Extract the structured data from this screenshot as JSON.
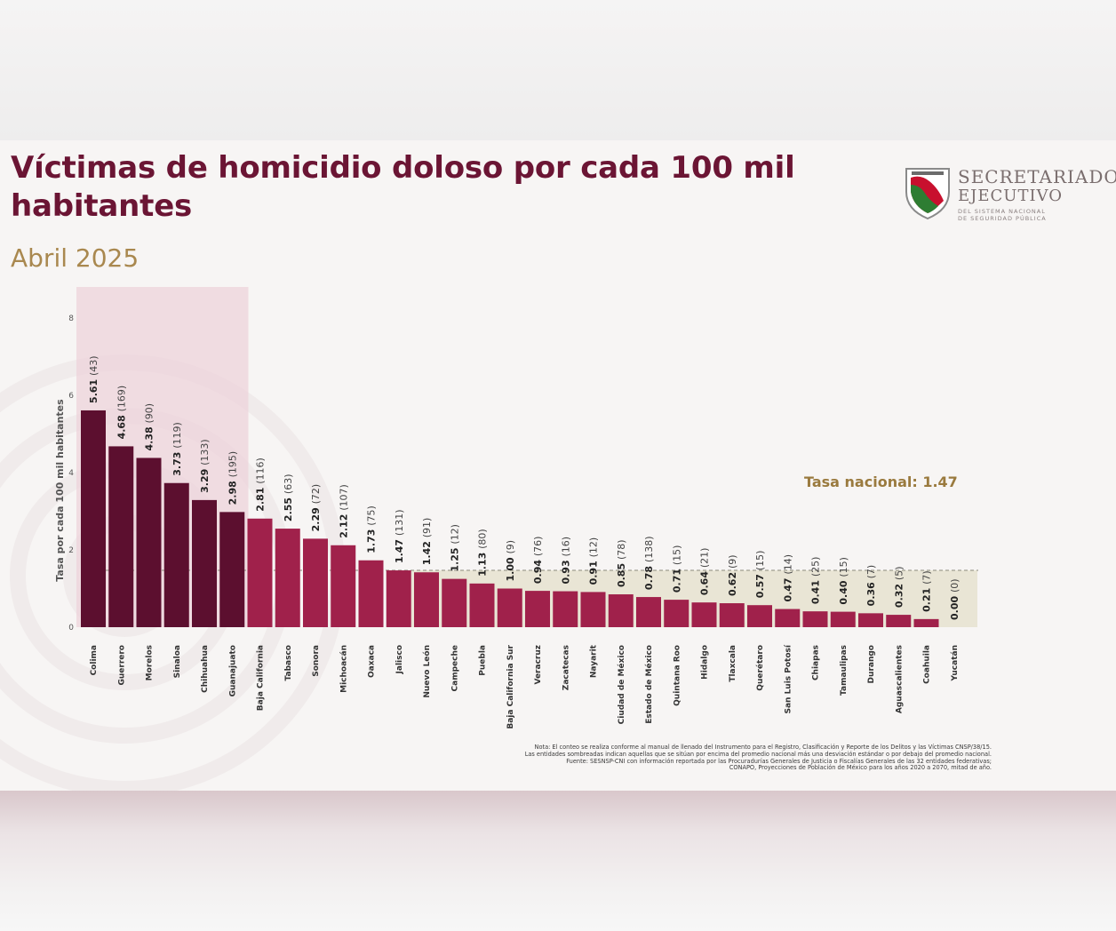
{
  "header": {
    "title": "Víctimas de homicidio doloso por cada 100 mil habitantes",
    "subtitle": "Abril 2025"
  },
  "logo": {
    "line1": "SECRETARIADO",
    "line2": "EJECUTIVO",
    "line3": "DEL SISTEMA NACIONAL\nDE SEGURIDAD PÚBLICA"
  },
  "colors": {
    "highlight_bar": "#5c0f2f",
    "bar": "#a0214b",
    "highlight_band": "#edd3db",
    "below_band": "#e6e2cf",
    "title": "#6b1534",
    "subtitle": "#a9884f"
  },
  "chart_data": {
    "type": "bar",
    "ylabel": "Tasa por cada 100 mil habitantes",
    "ylim": [
      0,
      8
    ],
    "yticks": [
      0,
      2,
      4,
      6,
      8
    ],
    "categories": [
      "Colima",
      "Guerrero",
      "Morelos",
      "Sinaloa",
      "Chihuahua",
      "Guanajuato",
      "Baja California",
      "Tabasco",
      "Sonora",
      "Michoacán",
      "Oaxaca",
      "Jalisco",
      "Nuevo León",
      "Campeche",
      "Puebla",
      "Baja California Sur",
      "Veracruz",
      "Zacatecas",
      "Nayarit",
      "Ciudad de México",
      "Estado de México",
      "Quintana Roo",
      "Hidalgo",
      "Tlaxcala",
      "Querétaro",
      "San Luis Potosí",
      "Chiapas",
      "Tamaulipas",
      "Durango",
      "Aguascalientes",
      "Coahuila",
      "Yucatán"
    ],
    "values": [
      5.61,
      4.68,
      4.38,
      3.73,
      3.29,
      2.98,
      2.81,
      2.55,
      2.29,
      2.12,
      1.73,
      1.47,
      1.42,
      1.25,
      1.13,
      1.0,
      0.94,
      0.93,
      0.91,
      0.85,
      0.78,
      0.71,
      0.64,
      0.62,
      0.57,
      0.47,
      0.41,
      0.4,
      0.36,
      0.32,
      0.21,
      0.0
    ],
    "value_labels": [
      "5.61",
      "4.68",
      "4.38",
      "3.73",
      "3.29",
      "2.98",
      "2.81",
      "2.55",
      "2.29",
      "2.12",
      "1.73",
      "1.47",
      "1.42",
      "1.25",
      "1.13",
      "1.00",
      "0.94",
      "0.93",
      "0.91",
      "0.85",
      "0.78",
      "0.71",
      "0.64",
      "0.62",
      "0.57",
      "0.47",
      "0.41",
      "0.40",
      "0.36",
      "0.32",
      "0.21",
      "0.00"
    ],
    "counts": [
      "(43)",
      "(169)",
      "(90)",
      "(119)",
      "(133)",
      "(195)",
      "(116)",
      "(63)",
      "(72)",
      "(107)",
      "(75)",
      "(131)",
      "(91)",
      "(12)",
      "(80)",
      "(9)",
      "(76)",
      "(16)",
      "(12)",
      "(78)",
      "(138)",
      "(15)",
      "(21)",
      "(9)",
      "(15)",
      "(14)",
      "(25)",
      "(15)",
      "(7)",
      "(5)",
      "(7)",
      "(0)"
    ],
    "highlighted_count": 6,
    "national_rate": 1.47,
    "national_rate_label": "Tasa nacional: 1.47",
    "grid": false
  },
  "notes": [
    "Nota: El conteo se realiza conforme al manual de llenado del Instrumento para el Registro, Clasificación y Reporte de los Delitos y las Víctimas CNSP/38/15.",
    "Las entidades sombreadas indican aquellas que se sitúan por encima del promedio nacional más una desviación estándar o por debajo del promedio nacional.",
    "Fuente: SESNSP-CNI con información reportada por las Procuradurías Generales de Justicia o Fiscalías Generales de las 32 entidades federativas;",
    "CONAPO, Proyecciones de Población de México para los años 2020 a 2070, mitad de año."
  ]
}
